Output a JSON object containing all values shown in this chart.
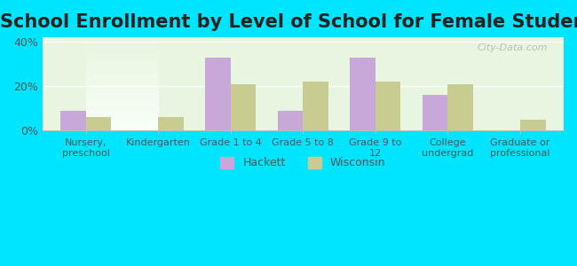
{
  "title": "School Enrollment by Level of School for Female Students",
  "categories": [
    "Nursery,\npreschool",
    "Kindergarten",
    "Grade 1 to 4",
    "Grade 5 to 8",
    "Grade 9 to\n12",
    "College\nundergrad",
    "Graduate or\nprofessional"
  ],
  "hackett": [
    9,
    0,
    33,
    9,
    33,
    16,
    0
  ],
  "wisconsin": [
    6,
    6,
    21,
    22,
    22,
    21,
    5
  ],
  "hackett_color": "#c8a8d8",
  "wisconsin_color": "#c8cc90",
  "background_color": "#00e5ff",
  "plot_bg_top": "#e8f5e0",
  "plot_bg_bottom": "#f5fff0",
  "ylim": [
    0,
    42
  ],
  "yticks": [
    0,
    20,
    40
  ],
  "ytick_labels": [
    "0%",
    "20%",
    "40%"
  ],
  "title_fontsize": 15,
  "legend_labels": [
    "Hackett",
    "Wisconsin"
  ],
  "bar_width": 0.35
}
